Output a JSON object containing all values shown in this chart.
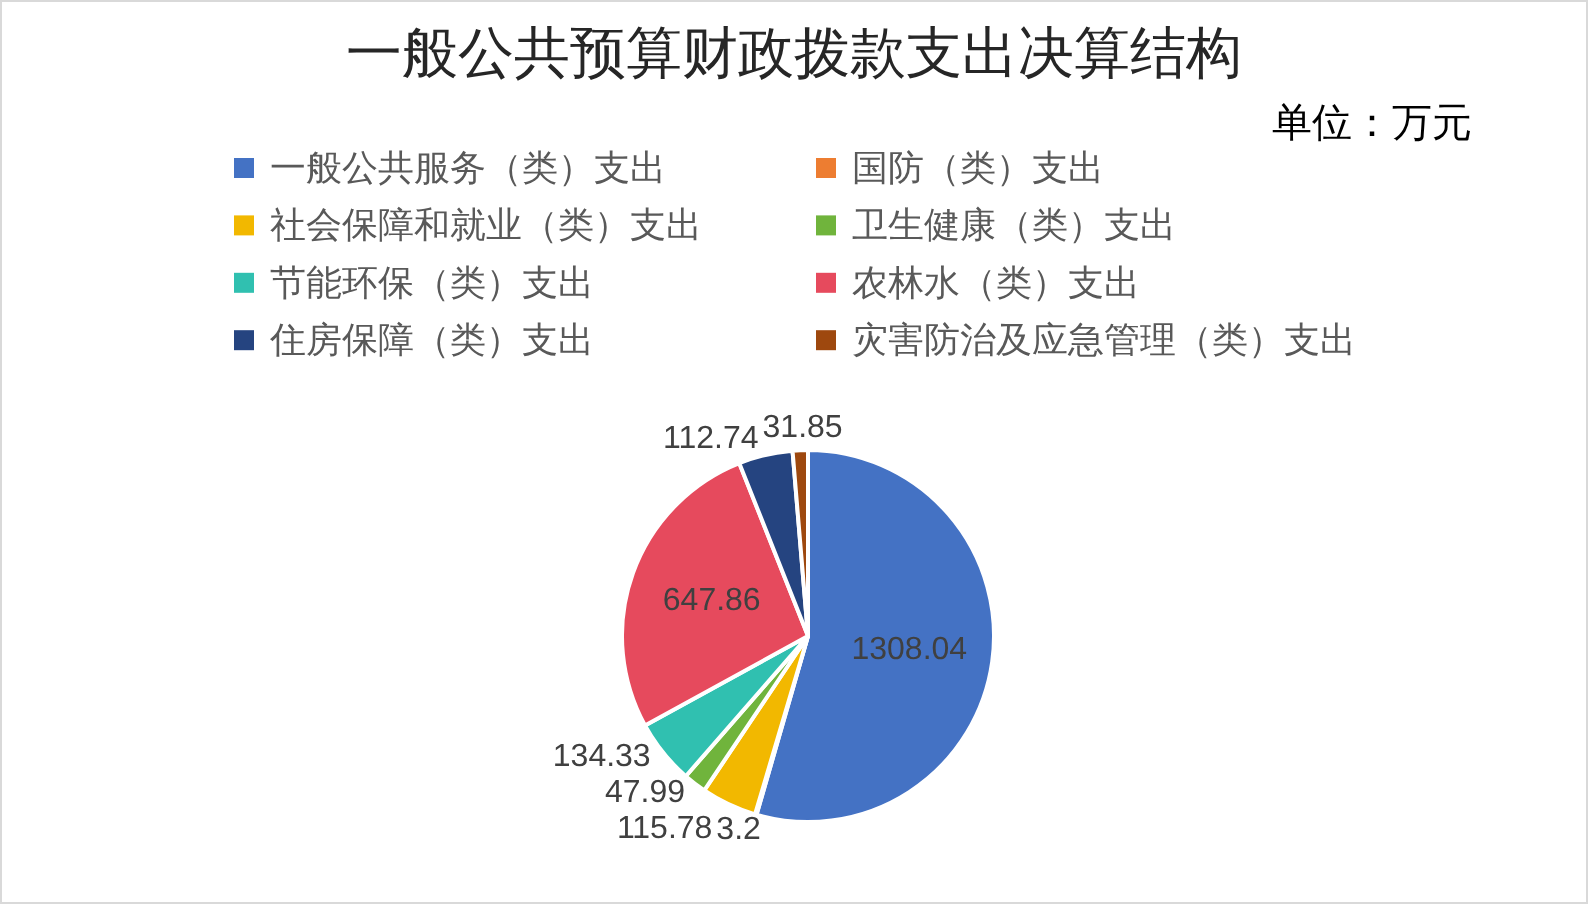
{
  "chart_data": {
    "type": "pie",
    "title": "一般公共预算财政拨款支出决算结构",
    "subtitle": "单位：万元",
    "categories": [
      "一般公共服务（类）支出",
      "国防（类）支出",
      "社会保障和就业（类）支出",
      "卫生健康（类）支出",
      "节能环保（类）支出",
      "农林水（类）支出",
      "住房保障（类）支出",
      "灾害防治及应急管理（类）支出"
    ],
    "values": [
      1308.04,
      3.2,
      115.78,
      47.99,
      134.33,
      647.86,
      112.74,
      31.85
    ],
    "colors": [
      "#4472c4",
      "#ed7d31",
      "#f2b800",
      "#70b43c",
      "#30c0b0",
      "#e64a5d",
      "#254480",
      "#9e480e"
    ],
    "legend": "top",
    "data_labels": true
  }
}
